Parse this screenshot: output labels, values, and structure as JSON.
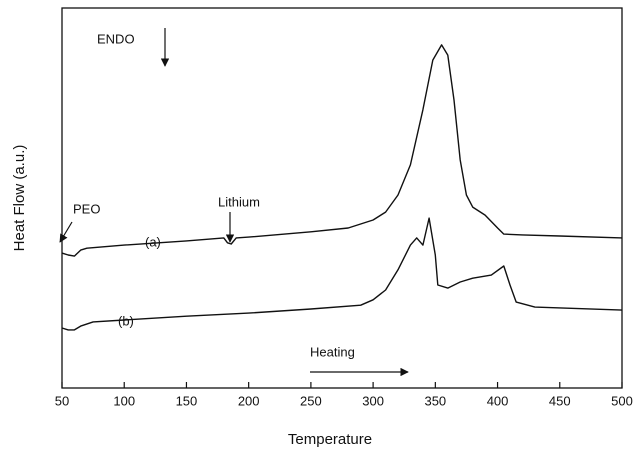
{
  "chart_data": {
    "type": "line",
    "xlabel": "Temperature",
    "ylabel": "Heat Flow (a.u.)",
    "annotations": [
      "ENDO",
      "PEO",
      "(a)",
      "Lithium",
      "(b)",
      "Heating"
    ],
    "xlim": [
      50,
      500
    ],
    "xticks": [
      50,
      100,
      150,
      200,
      250,
      300,
      350,
      400,
      450,
      500
    ],
    "ylim": [
      0,
      100
    ],
    "series": [
      {
        "name": "(a)",
        "color": "#111111",
        "x": [
          50,
          55,
          60,
          65,
          70,
          100,
          150,
          180,
          183,
          186,
          190,
          200,
          250,
          280,
          300,
          310,
          320,
          330,
          340,
          348,
          355,
          360,
          365,
          370,
          375,
          380,
          390,
          400,
          405,
          420,
          450,
          500
        ],
        "values": [
          35.5,
          35,
          34.7,
          36.3,
          36.8,
          37.6,
          38.7,
          39.5,
          38.2,
          37.9,
          39.5,
          39.7,
          41.1,
          42.1,
          44.2,
          46.3,
          50.8,
          58.7,
          73.2,
          86.3,
          90.3,
          87.6,
          75.8,
          60,
          50.8,
          47.6,
          45.5,
          42.1,
          40.5,
          40.3,
          40,
          39.5
        ]
      },
      {
        "name": "(b)",
        "color": "#111111",
        "x": [
          50,
          55,
          60,
          65,
          75,
          100,
          150,
          200,
          250,
          290,
          300,
          310,
          320,
          330,
          335,
          340,
          345,
          350,
          352,
          360,
          370,
          380,
          395,
          405,
          410,
          415,
          430,
          500
        ],
        "values": [
          15.8,
          15.3,
          15.3,
          16.3,
          17.4,
          17.9,
          18.9,
          19.7,
          20.8,
          21.8,
          23.2,
          25.8,
          31.1,
          37.6,
          39.5,
          37.6,
          44.7,
          35,
          27.1,
          26.3,
          27.9,
          28.9,
          29.7,
          32.1,
          27.1,
          22.6,
          21.3,
          20.5
        ]
      }
    ]
  }
}
